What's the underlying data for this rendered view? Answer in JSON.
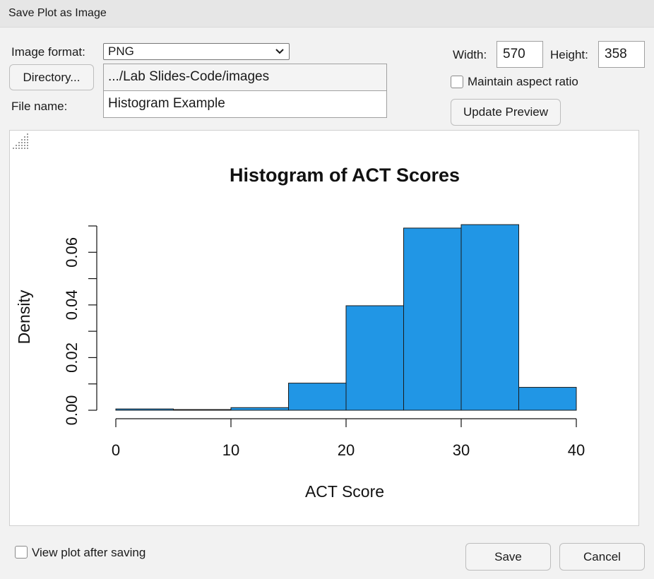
{
  "window": {
    "title": "Save Plot as Image"
  },
  "form": {
    "image_format_label": "Image format:",
    "image_format_value": "PNG",
    "directory_button": "Directory...",
    "directory_value": ".../Lab Slides-Code/images",
    "file_name_label": "File name:",
    "file_name_value": "Histogram Example",
    "width_label": "Width:",
    "width_value": "570",
    "height_label": "Height:",
    "height_value": "358",
    "maintain_aspect_label": "Maintain aspect ratio",
    "maintain_aspect_checked": false,
    "update_preview_button": "Update Preview"
  },
  "footer": {
    "view_after_label": "View plot after saving",
    "view_after_checked": false,
    "save_button": "Save",
    "cancel_button": "Cancel"
  },
  "colors": {
    "bar_fill": "#2196e5",
    "bar_stroke": "#1a1a1a"
  },
  "chart_data": {
    "type": "bar",
    "title": "Histogram of ACT Scores",
    "xlabel": "ACT Score",
    "ylabel": "Density",
    "bins": [
      [
        0,
        5
      ],
      [
        5,
        10
      ],
      [
        10,
        15
      ],
      [
        15,
        20
      ],
      [
        20,
        25
      ],
      [
        25,
        30
      ],
      [
        30,
        35
      ],
      [
        35,
        40
      ]
    ],
    "values": [
      0.0005,
      0.0002,
      0.001,
      0.0103,
      0.0397,
      0.0692,
      0.0705,
      0.0087
    ],
    "xlim": [
      0,
      40
    ],
    "ylim": [
      0,
      0.07
    ],
    "x_ticks": [
      "0",
      "10",
      "20",
      "30",
      "40"
    ],
    "y_ticks": [
      "0.00",
      "0.02",
      "0.04",
      "0.06"
    ],
    "grid": false,
    "legend": "none"
  }
}
